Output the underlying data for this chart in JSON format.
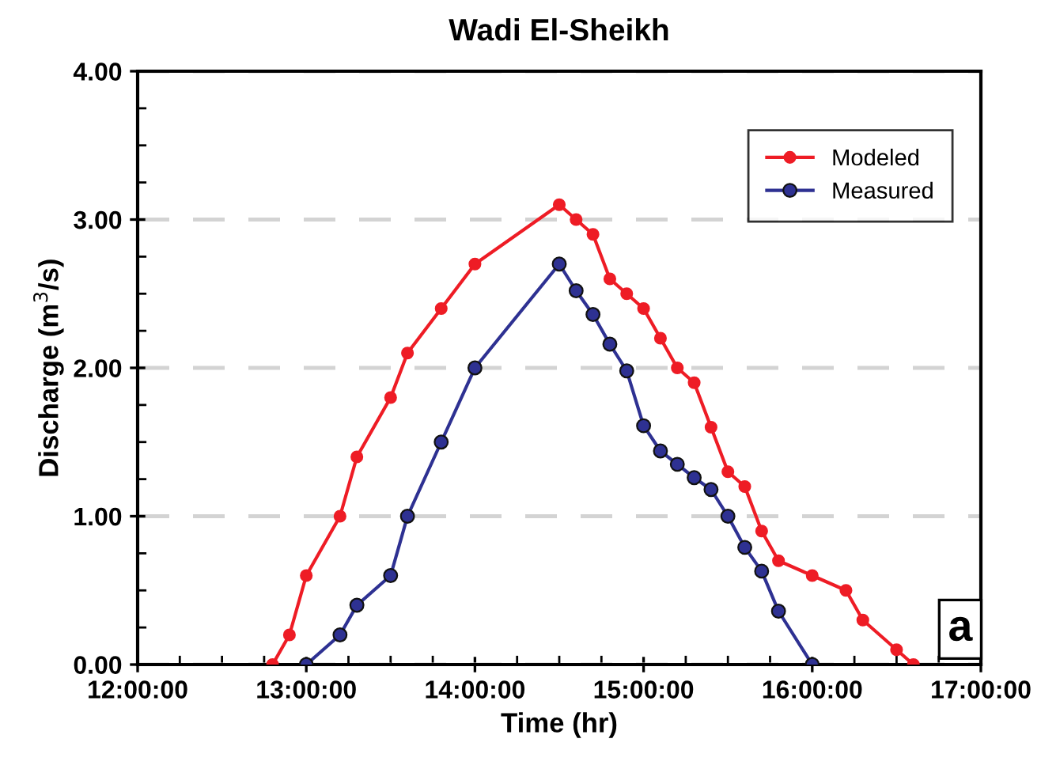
{
  "chart_data": {
    "type": "line",
    "title": "Wadi El-Sheikh",
    "xlabel": "Time (hr)",
    "ylabel": "Discharge (m$^{3}$/s)",
    "series": [
      {
        "name": "Modeled",
        "color": "#ee1c25",
        "x": [
          12.8,
          12.9,
          13.0,
          13.2,
          13.3,
          13.5,
          13.6,
          13.8,
          14.0,
          14.5,
          14.6,
          14.7,
          14.8,
          14.9,
          15.0,
          15.1,
          15.2,
          15.3,
          15.4,
          15.5,
          15.6,
          15.7,
          15.8,
          16.0,
          16.2,
          16.3,
          16.5,
          16.6
        ],
        "values": [
          0,
          0.2,
          0.6,
          1.0,
          1.4,
          1.8,
          2.1,
          2.4,
          2.7,
          3.1,
          3.0,
          2.9,
          2.6,
          2.5,
          2.4,
          2.2,
          2.0,
          1.9,
          1.6,
          1.3,
          1.2,
          0.9,
          0.7,
          0.6,
          0.5,
          0.3,
          0.1,
          0
        ]
      },
      {
        "name": "Measured",
        "color": "#2e3192",
        "x": [
          13.0,
          13.2,
          13.3,
          13.5,
          13.6,
          13.8,
          14.0,
          14.5,
          14.6,
          14.7,
          14.8,
          14.9,
          15.0,
          15.1,
          15.2,
          15.3,
          15.4,
          15.5,
          15.6,
          15.7,
          15.8,
          16.0
        ],
        "values": [
          0,
          0.2,
          0.4,
          0.6,
          1.0,
          1.5,
          2.0,
          2.7,
          2.52,
          2.36,
          2.16,
          1.98,
          1.61,
          1.44,
          1.35,
          1.26,
          1.18,
          1.0,
          0.79,
          0.63,
          0.36,
          0
        ]
      }
    ],
    "xlim": [
      12,
      17
    ],
    "xticks": [
      {
        "value": 12,
        "label": "12:00:00"
      },
      {
        "value": 13,
        "label": "13:00:00"
      },
      {
        "value": 14,
        "label": "14:00:00"
      },
      {
        "value": 15,
        "label": "15:00:00"
      },
      {
        "value": 16,
        "label": "16:00:00"
      },
      {
        "value": 17,
        "label": "17:00:00"
      }
    ],
    "ylim": [
      0,
      4
    ],
    "yticks": [
      {
        "value": 0,
        "label": "0.00"
      },
      {
        "value": 1,
        "label": "1.00"
      },
      {
        "value": 2,
        "label": "2.00"
      },
      {
        "value": 3,
        "label": "3.00"
      },
      {
        "value": 4,
        "label": "4.00"
      }
    ],
    "grid": "y",
    "legend": "top right",
    "marker": "circle",
    "line_style": "solid",
    "annotations": [
      "a"
    ]
  }
}
